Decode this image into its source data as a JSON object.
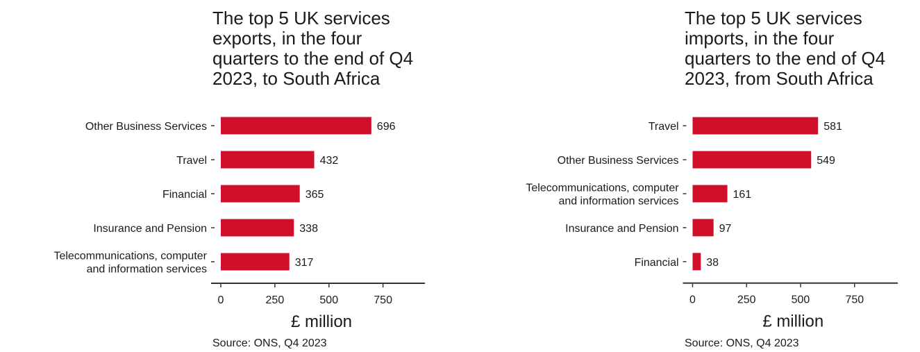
{
  "chart_data": [
    {
      "type": "bar",
      "orientation": "horizontal",
      "title": "The top 5 UK services exports, in the four quarters to the end of Q4 2023, to South Africa",
      "title_lines": [
        "The top 5 UK services",
        "exports, in the four",
        "quarters to the end of Q4",
        "2023, to South Africa"
      ],
      "categories": [
        "Other Business Services",
        "Travel",
        "Financial",
        "Insurance and Pension",
        "Telecommunications, computer and information services"
      ],
      "category_lines": [
        [
          "Other Business Services"
        ],
        [
          "Travel"
        ],
        [
          "Financial"
        ],
        [
          "Insurance and Pension"
        ],
        [
          "Telecommunications, computer",
          "and information services"
        ]
      ],
      "values": [
        696,
        432,
        365,
        338,
        317
      ],
      "data_labels": [
        "696",
        "432",
        "365",
        "338",
        "317"
      ],
      "xlabel": "£ million",
      "xlim": [
        0,
        940
      ],
      "xticks": [
        0,
        250,
        500,
        750
      ],
      "xtick_labels": [
        "0",
        "250",
        "500",
        "750"
      ],
      "grid": false,
      "bar_color": "#d0102b",
      "source": "Source: ONS, Q4 2023"
    },
    {
      "type": "bar",
      "orientation": "horizontal",
      "title": "The top 5 UK services imports, in the four quarters to the end of Q4 2023, from South Africa",
      "title_lines": [
        "The top 5 UK services",
        "imports, in the four",
        "quarters to the end of Q4",
        "2023, from South Africa"
      ],
      "categories": [
        "Travel",
        "Other Business Services",
        "Telecommunications, computer and information services",
        "Insurance and Pension",
        "Financial"
      ],
      "category_lines": [
        [
          "Travel"
        ],
        [
          "Other Business Services"
        ],
        [
          "Telecommunications, computer",
          "and information services"
        ],
        [
          "Insurance and Pension"
        ],
        [
          "Financial"
        ]
      ],
      "values": [
        581,
        549,
        161,
        97,
        38
      ],
      "data_labels": [
        "581",
        "549",
        "161",
        "97",
        "38"
      ],
      "xlabel": "£ million",
      "xlim": [
        0,
        940
      ],
      "xticks": [
        0,
        250,
        500,
        750
      ],
      "xtick_labels": [
        "0",
        "250",
        "500",
        "750"
      ],
      "grid": false,
      "bar_color": "#d0102b",
      "source": "Source: ONS, Q4 2023"
    }
  ]
}
